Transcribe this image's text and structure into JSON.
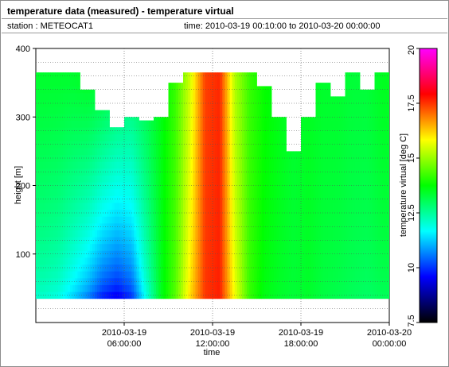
{
  "header": {
    "title": "temperature data (measured) - temperature virtual",
    "station": "station : METEOCAT1",
    "time_range": "time: 2010-03-19 00:10:00 to 2010-03-20 00:00:00"
  },
  "colorbar": {
    "label": "temperature virtual [deg C]",
    "range": [
      7.5,
      20
    ],
    "ticks": [
      "7.5",
      "10",
      "12.5",
      "15",
      "17.5",
      "20"
    ],
    "tick_values": [
      7.5,
      10,
      12.5,
      15,
      17.5,
      20
    ],
    "colormap": [
      "#000000",
      "#0000ff",
      "#00ffff",
      "#00ff00",
      "#ffff00",
      "#ff0000",
      "#ff00ff"
    ]
  },
  "chart_data": {
    "type": "heatmap",
    "xlabel": "time",
    "ylabel": "height [m]",
    "xlim": [
      "2010-03-19 00:00:00",
      "2010-03-20 00:00:00"
    ],
    "ylim": [
      0,
      400
    ],
    "grid": true,
    "x_ticks": [
      {
        "value": "2010-03-19 06:00:00",
        "line1": "2010-03-19",
        "line2": "06:00:00"
      },
      {
        "value": "2010-03-19 12:00:00",
        "line1": "2010-03-19",
        "line2": "12:00:00"
      },
      {
        "value": "2010-03-19 18:00:00",
        "line1": "2010-03-19",
        "line2": "18:00:00"
      },
      {
        "value": "2010-03-20 00:00:00",
        "line1": "2010-03-20",
        "line2": "00:00:00"
      }
    ],
    "y_ticks": [
      100,
      200,
      300,
      400
    ],
    "height_range_m": [
      35,
      365
    ],
    "time_hours": [
      0.5,
      1.5,
      2.5,
      3.5,
      4.5,
      5.5,
      6.5,
      7.5,
      8.5,
      9.5,
      10.5,
      11.5,
      12.5,
      13.5,
      14.5,
      15.5,
      16.5,
      17.5,
      18.5,
      19.5,
      20.5,
      21.5,
      22.5,
      23.5
    ],
    "data_top_m": [
      365,
      365,
      365,
      340,
      310,
      285,
      300,
      295,
      300,
      350,
      365,
      365,
      365,
      365,
      365,
      345,
      300,
      250,
      300,
      350,
      330,
      365,
      340,
      365
    ],
    "temp_at_40m": [
      12.0,
      11.8,
      11.2,
      10.5,
      9.6,
      9.2,
      9.8,
      11.8,
      13.5,
      14.5,
      16.2,
      17.5,
      17.7,
      15.8,
      14.2,
      13.6,
      13.4,
      13.3,
      13.4,
      13.2,
      13.1,
      13.0,
      12.9,
      13.0
    ],
    "temp_at_360m": [
      13.4,
      13.4,
      13.4,
      13.5,
      13.4,
      13.2,
      13.0,
      13.2,
      13.6,
      14.2,
      15.5,
      17.4,
      17.6,
      15.2,
      14.2,
      13.8,
      13.6,
      13.4,
      13.5,
      13.4,
      13.4,
      13.3,
      13.3,
      13.5
    ]
  }
}
